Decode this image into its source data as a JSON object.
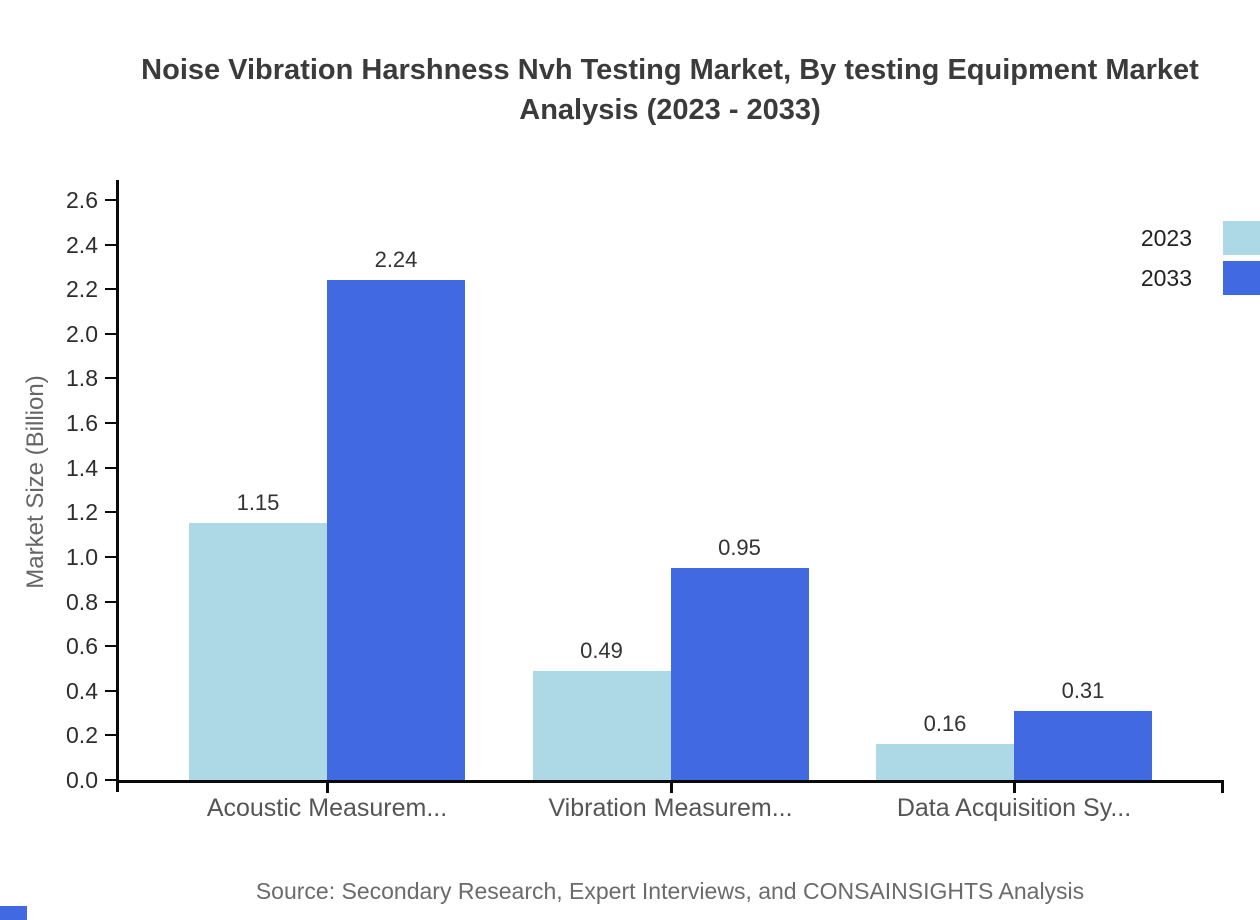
{
  "title": "Noise Vibration Harshness Nvh Testing Market, By testing Equipment Market Analysis (2023 - 2033)",
  "chart_data": {
    "type": "bar",
    "title": "Noise Vibration Harshness Nvh Testing Market, By testing Equipment Market Analysis (2023 - 2033)",
    "categories": [
      "Acoustic Measurem...",
      "Vibration Measurem...",
      "Data Acquisition Sy..."
    ],
    "series": [
      {
        "name": "2023",
        "color": "#ADD8E6",
        "values": [
          1.15,
          0.49,
          0.16
        ]
      },
      {
        "name": "2033",
        "color": "#4169E1",
        "values": [
          2.24,
          0.95,
          0.31
        ]
      }
    ],
    "xlabel": "",
    "ylabel": "Market Size (Billion)",
    "ylim": [
      0,
      2.6
    ],
    "ytick_step": 0.2,
    "grid": false,
    "legend_position": "top-right",
    "value_labels": true
  },
  "legend": {
    "items": [
      {
        "label": "2023",
        "color": "#ADD8E6"
      },
      {
        "label": "2033",
        "color": "#4169E1"
      }
    ]
  },
  "source": "Source: Secondary Research, Expert Interviews, and CONSAINSIGHTS Analysis",
  "colors": {
    "series_2023": "#ADD8E6",
    "series_2033": "#4169E1",
    "axis": "#0a0a0a",
    "title_text": "#3b3b3b",
    "brand_mark": "#4169E1"
  }
}
